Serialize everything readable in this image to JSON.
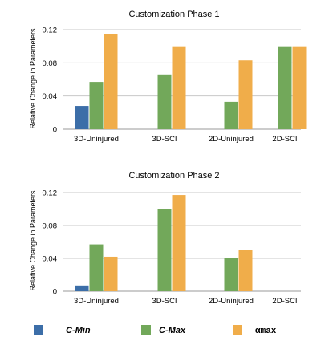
{
  "chart_data": [
    {
      "type": "bar",
      "title": "Customization Phase 1",
      "ylabel": "Relative Change in Parameters",
      "xlabel": "",
      "categories": [
        "3D-Uninjured",
        "3D-SCI",
        "2D-Uninjured",
        "2D-SCI"
      ],
      "ylim": [
        0,
        0.12
      ],
      "yticks": [
        "0",
        "0.04",
        "0.08",
        "0.12"
      ],
      "grid": true,
      "series": [
        {
          "name": "C-Min",
          "color": "#3c6ea8",
          "values": [
            0.028,
            null,
            null,
            null
          ]
        },
        {
          "name": "C-Max",
          "color": "#72a85a",
          "values": [
            0.057,
            0.066,
            0.033,
            0.1
          ]
        },
        {
          "name": "αmax",
          "color": "#f0ad4a",
          "values": [
            0.115,
            0.1,
            0.083,
            0.1
          ]
        }
      ]
    },
    {
      "type": "bar",
      "title": "Customization Phase 2",
      "ylabel": "Relative Change in Parameters",
      "xlabel": "",
      "categories": [
        "3D-Uninjured",
        "3D-SCI",
        "2D-Uninjured",
        "2D-SCI"
      ],
      "ylim": [
        0,
        0.12
      ],
      "yticks": [
        "0",
        "0.04",
        "0.08",
        "0.12"
      ],
      "grid": true,
      "series": [
        {
          "name": "C-Min",
          "color": "#3c6ea8",
          "values": [
            0.007,
            null,
            null,
            null
          ]
        },
        {
          "name": "C-Max",
          "color": "#72a85a",
          "values": [
            0.057,
            0.1,
            0.04,
            null
          ]
        },
        {
          "name": "αmax",
          "color": "#f0ad4a",
          "values": [
            0.042,
            0.117,
            0.05,
            null
          ]
        }
      ]
    }
  ],
  "legend": {
    "placement": "bottom",
    "items": [
      {
        "label": "C-Min",
        "color": "#3c6ea8"
      },
      {
        "label": "C-Max",
        "color": "#72a85a"
      },
      {
        "label": "αmax",
        "color": "#f0ad4a"
      }
    ]
  }
}
